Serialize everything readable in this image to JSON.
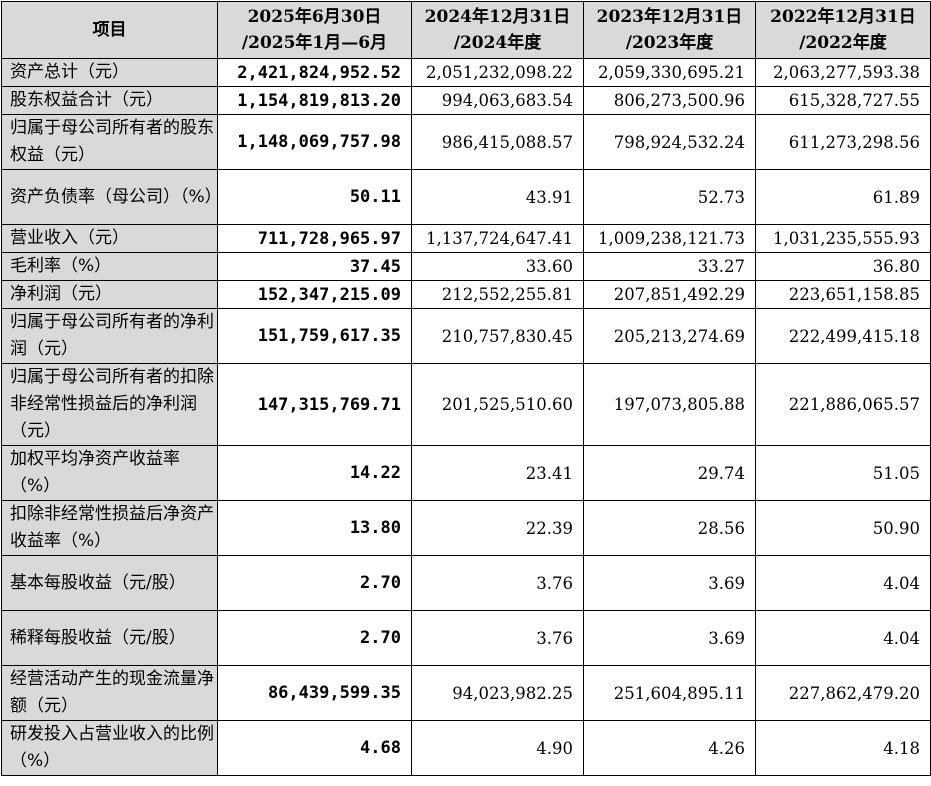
{
  "table": {
    "headers": [
      {
        "line1": "项目",
        "line2": ""
      },
      {
        "line1": "2025年6月30日",
        "line2": "/2025年1月—6月"
      },
      {
        "line1": "2024年12月31日",
        "line2": "/2024年度"
      },
      {
        "line1": "2023年12月31日",
        "line2": "/2023年度"
      },
      {
        "line1": "2022年12月31日",
        "line2": "/2022年度"
      }
    ],
    "rows": [
      {
        "label": "资产总计（元）",
        "h": 1,
        "values": [
          "2,421,824,952.52",
          "2,051,232,098.22",
          "2,059,330,695.21",
          "2,063,277,593.38"
        ]
      },
      {
        "label": "股东权益合计（元）",
        "h": 1,
        "values": [
          "1,154,819,813.20",
          "994,063,683.54",
          "806,273,500.96",
          "615,328,727.55"
        ]
      },
      {
        "label": "归属于母公司所有者的股东权益（元）",
        "h": 2,
        "values": [
          "1,148,069,757.98",
          "986,415,088.57",
          "798,924,532.24",
          "611,273,298.56"
        ]
      },
      {
        "label": "资产负债率（母公司）（%）",
        "h": 2,
        "values": [
          "50.11",
          "43.91",
          "52.73",
          "61.89"
        ]
      },
      {
        "label": "营业收入（元）",
        "h": 1,
        "values": [
          "711,728,965.97",
          "1,137,724,647.41",
          "1,009,238,121.73",
          "1,031,235,555.93"
        ]
      },
      {
        "label": "毛利率（%）",
        "h": 1,
        "values": [
          "37.45",
          "33.60",
          "33.27",
          "36.80"
        ]
      },
      {
        "label": "净利润（元）",
        "h": 1,
        "values": [
          "152,347,215.09",
          "212,552,255.81",
          "207,851,492.29",
          "223,651,158.85"
        ]
      },
      {
        "label": "归属于母公司所有者的净利润（元）",
        "h": 2,
        "values": [
          "151,759,617.35",
          "210,757,830.45",
          "205,213,274.69",
          "222,499,415.18"
        ]
      },
      {
        "label": "归属于母公司所有者的扣除非经常性损益后的净利润（元）",
        "h": 3,
        "values": [
          "147,315,769.71",
          "201,525,510.60",
          "197,073,805.88",
          "221,886,065.57"
        ]
      },
      {
        "label": "加权平均净资产收益率（%）",
        "h": 2,
        "values": [
          "14.22",
          "23.41",
          "29.74",
          "51.05"
        ]
      },
      {
        "label": "扣除非经常性损益后净资产收益率（%）",
        "h": 2,
        "values": [
          "13.80",
          "22.39",
          "28.56",
          "50.90"
        ]
      },
      {
        "label": "基本每股收益（元/股）",
        "h": 2,
        "values": [
          "2.70",
          "3.76",
          "3.69",
          "4.04"
        ]
      },
      {
        "label": "稀释每股收益（元/股）",
        "h": 2,
        "values": [
          "2.70",
          "3.76",
          "3.69",
          "4.04"
        ]
      },
      {
        "label": "经营活动产生的现金流量净额（元）",
        "h": 2,
        "values": [
          "86,439,599.35",
          "94,023,982.25",
          "251,604,895.11",
          "227,862,479.20"
        ]
      },
      {
        "label": "研发投入占营业收入的比例（%）",
        "h": 2,
        "values": [
          "4.68",
          "4.90",
          "4.26",
          "4.18"
        ]
      }
    ]
  }
}
